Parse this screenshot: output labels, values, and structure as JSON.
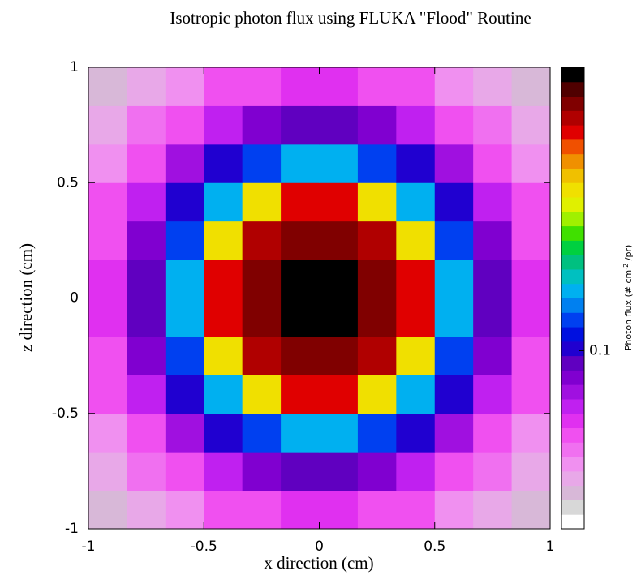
{
  "chart_data": {
    "type": "heatmap",
    "title": "Isotropic photon flux using FLUKA \"Flood\" Routine",
    "xlabel": "x direction (cm)",
    "ylabel": "z direction (cm)",
    "zlabel": [
      "Photon flux (# cm",
      "-2",
      " /pr)"
    ],
    "x": [
      -0.9167,
      -0.75,
      -0.5833,
      -0.4167,
      -0.25,
      -0.0833,
      0.0833,
      0.25,
      0.4167,
      0.5833,
      0.75,
      0.9167
    ],
    "y": [
      -0.9167,
      -0.75,
      -0.5833,
      -0.4167,
      -0.25,
      -0.0833,
      0.0833,
      0.25,
      0.4167,
      0.5833,
      0.75,
      0.9167
    ],
    "z": [
      [
        0.037,
        0.043,
        0.048,
        0.055,
        0.059,
        0.062,
        0.062,
        0.059,
        0.055,
        0.048,
        0.043,
        0.037
      ],
      [
        0.043,
        0.05,
        0.059,
        0.07,
        0.082,
        0.092,
        0.092,
        0.082,
        0.07,
        0.059,
        0.05,
        0.043
      ],
      [
        0.048,
        0.059,
        0.076,
        0.1,
        0.125,
        0.15,
        0.15,
        0.125,
        0.1,
        0.076,
        0.059,
        0.048
      ],
      [
        0.055,
        0.07,
        0.1,
        0.15,
        0.3,
        0.42,
        0.42,
        0.3,
        0.15,
        0.1,
        0.07,
        0.055
      ],
      [
        0.059,
        0.082,
        0.125,
        0.3,
        0.47,
        0.54,
        0.54,
        0.47,
        0.3,
        0.125,
        0.082,
        0.059
      ],
      [
        0.062,
        0.092,
        0.15,
        0.42,
        0.54,
        0.65,
        0.65,
        0.54,
        0.42,
        0.15,
        0.092,
        0.062
      ],
      [
        0.062,
        0.092,
        0.15,
        0.42,
        0.54,
        0.65,
        0.65,
        0.54,
        0.42,
        0.15,
        0.092,
        0.062
      ],
      [
        0.059,
        0.082,
        0.125,
        0.3,
        0.47,
        0.54,
        0.54,
        0.47,
        0.3,
        0.125,
        0.082,
        0.059
      ],
      [
        0.055,
        0.07,
        0.1,
        0.15,
        0.3,
        0.42,
        0.42,
        0.3,
        0.15,
        0.1,
        0.07,
        0.055
      ],
      [
        0.048,
        0.059,
        0.076,
        0.1,
        0.125,
        0.15,
        0.15,
        0.125,
        0.1,
        0.076,
        0.059,
        0.048
      ],
      [
        0.043,
        0.05,
        0.059,
        0.07,
        0.082,
        0.092,
        0.092,
        0.082,
        0.07,
        0.059,
        0.05,
        0.043
      ],
      [
        0.037,
        0.043,
        0.048,
        0.055,
        0.059,
        0.062,
        0.062,
        0.059,
        0.055,
        0.048,
        0.043,
        0.037
      ]
    ],
    "xlim": [
      -1,
      1
    ],
    "ylim": [
      -1,
      1
    ],
    "xticks": [
      -1,
      -0.5,
      0,
      0.5,
      1
    ],
    "yticks": [
      -1,
      -0.5,
      0,
      0.5,
      1
    ],
    "zlim": [
      0.03,
      0.68
    ],
    "zticks": [
      0.1
    ],
    "zscale": "log",
    "colors": [
      "#ffffff",
      "#d8d8d8",
      "#d8b8d8",
      "#e8a8e8",
      "#f090f0",
      "#f070f0",
      "#f050f0",
      "#e030f0",
      "#c020f0",
      "#a010e0",
      "#8000d0",
      "#6000c0",
      "#2000d0",
      "#0010e0",
      "#0040f0",
      "#0080f0",
      "#00b0f0",
      "#00c0c0",
      "#00c080",
      "#00d040",
      "#40e000",
      "#a0f000",
      "#e0f000",
      "#f0e000",
      "#f0c000",
      "#f09000",
      "#f05000",
      "#e00000",
      "#b00000",
      "#800000",
      "#500000",
      "#000000"
    ]
  }
}
